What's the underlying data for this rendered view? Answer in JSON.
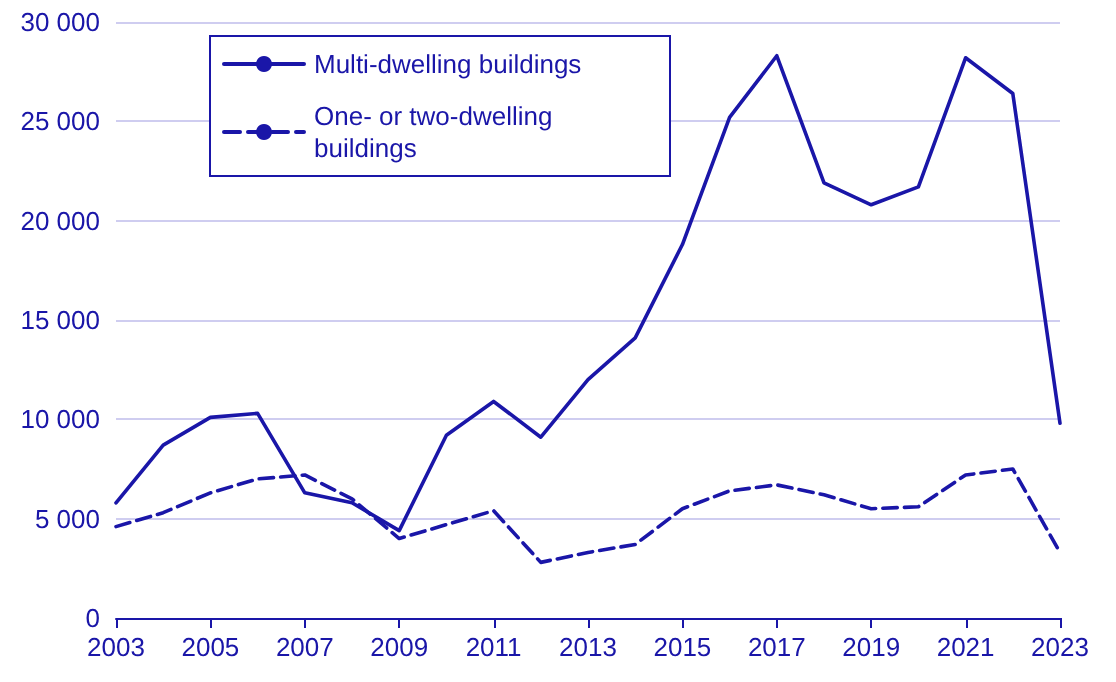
{
  "chart_data": {
    "type": "line",
    "x": [
      2003,
      2004,
      2005,
      2006,
      2007,
      2008,
      2009,
      2010,
      2011,
      2012,
      2013,
      2014,
      2015,
      2016,
      2017,
      2018,
      2019,
      2020,
      2021,
      2022,
      2023
    ],
    "series": [
      {
        "name": "Multi-dwelling buildings",
        "color": "#1a16a8",
        "line_style": "solid",
        "values": [
          5800,
          8700,
          10100,
          10300,
          6300,
          5800,
          4400,
          9200,
          10900,
          9100,
          12000,
          14100,
          18800,
          25200,
          28300,
          21900,
          20800,
          21700,
          28200,
          26400,
          9800
        ]
      },
      {
        "name": "One- or two-dwelling buildings",
        "color": "#1a16a8",
        "line_style": "dashed",
        "values": [
          4600,
          5300,
          6300,
          7000,
          7200,
          6000,
          4000,
          4700,
          5400,
          2800,
          3300,
          3700,
          5500,
          6400,
          6700,
          6200,
          5500,
          5600,
          7200,
          7500,
          3300
        ]
      }
    ],
    "xlim": [
      2003,
      2023
    ],
    "xticks": [
      2003,
      2005,
      2007,
      2009,
      2011,
      2013,
      2015,
      2017,
      2019,
      2021,
      2023
    ],
    "ylim": [
      0,
      30000
    ],
    "yticks": [
      0,
      {
        "value": 5000,
        "label": "5 000"
      },
      {
        "value": 10000,
        "label": "10 000"
      },
      {
        "value": 15000,
        "label": "15 000"
      },
      {
        "value": 20000,
        "label": "20 000"
      },
      {
        "value": 25000,
        "label": "25 000"
      },
      {
        "value": 30000,
        "label": "30 000"
      }
    ],
    "grid": "y",
    "legend": "top left",
    "marker": "none"
  }
}
